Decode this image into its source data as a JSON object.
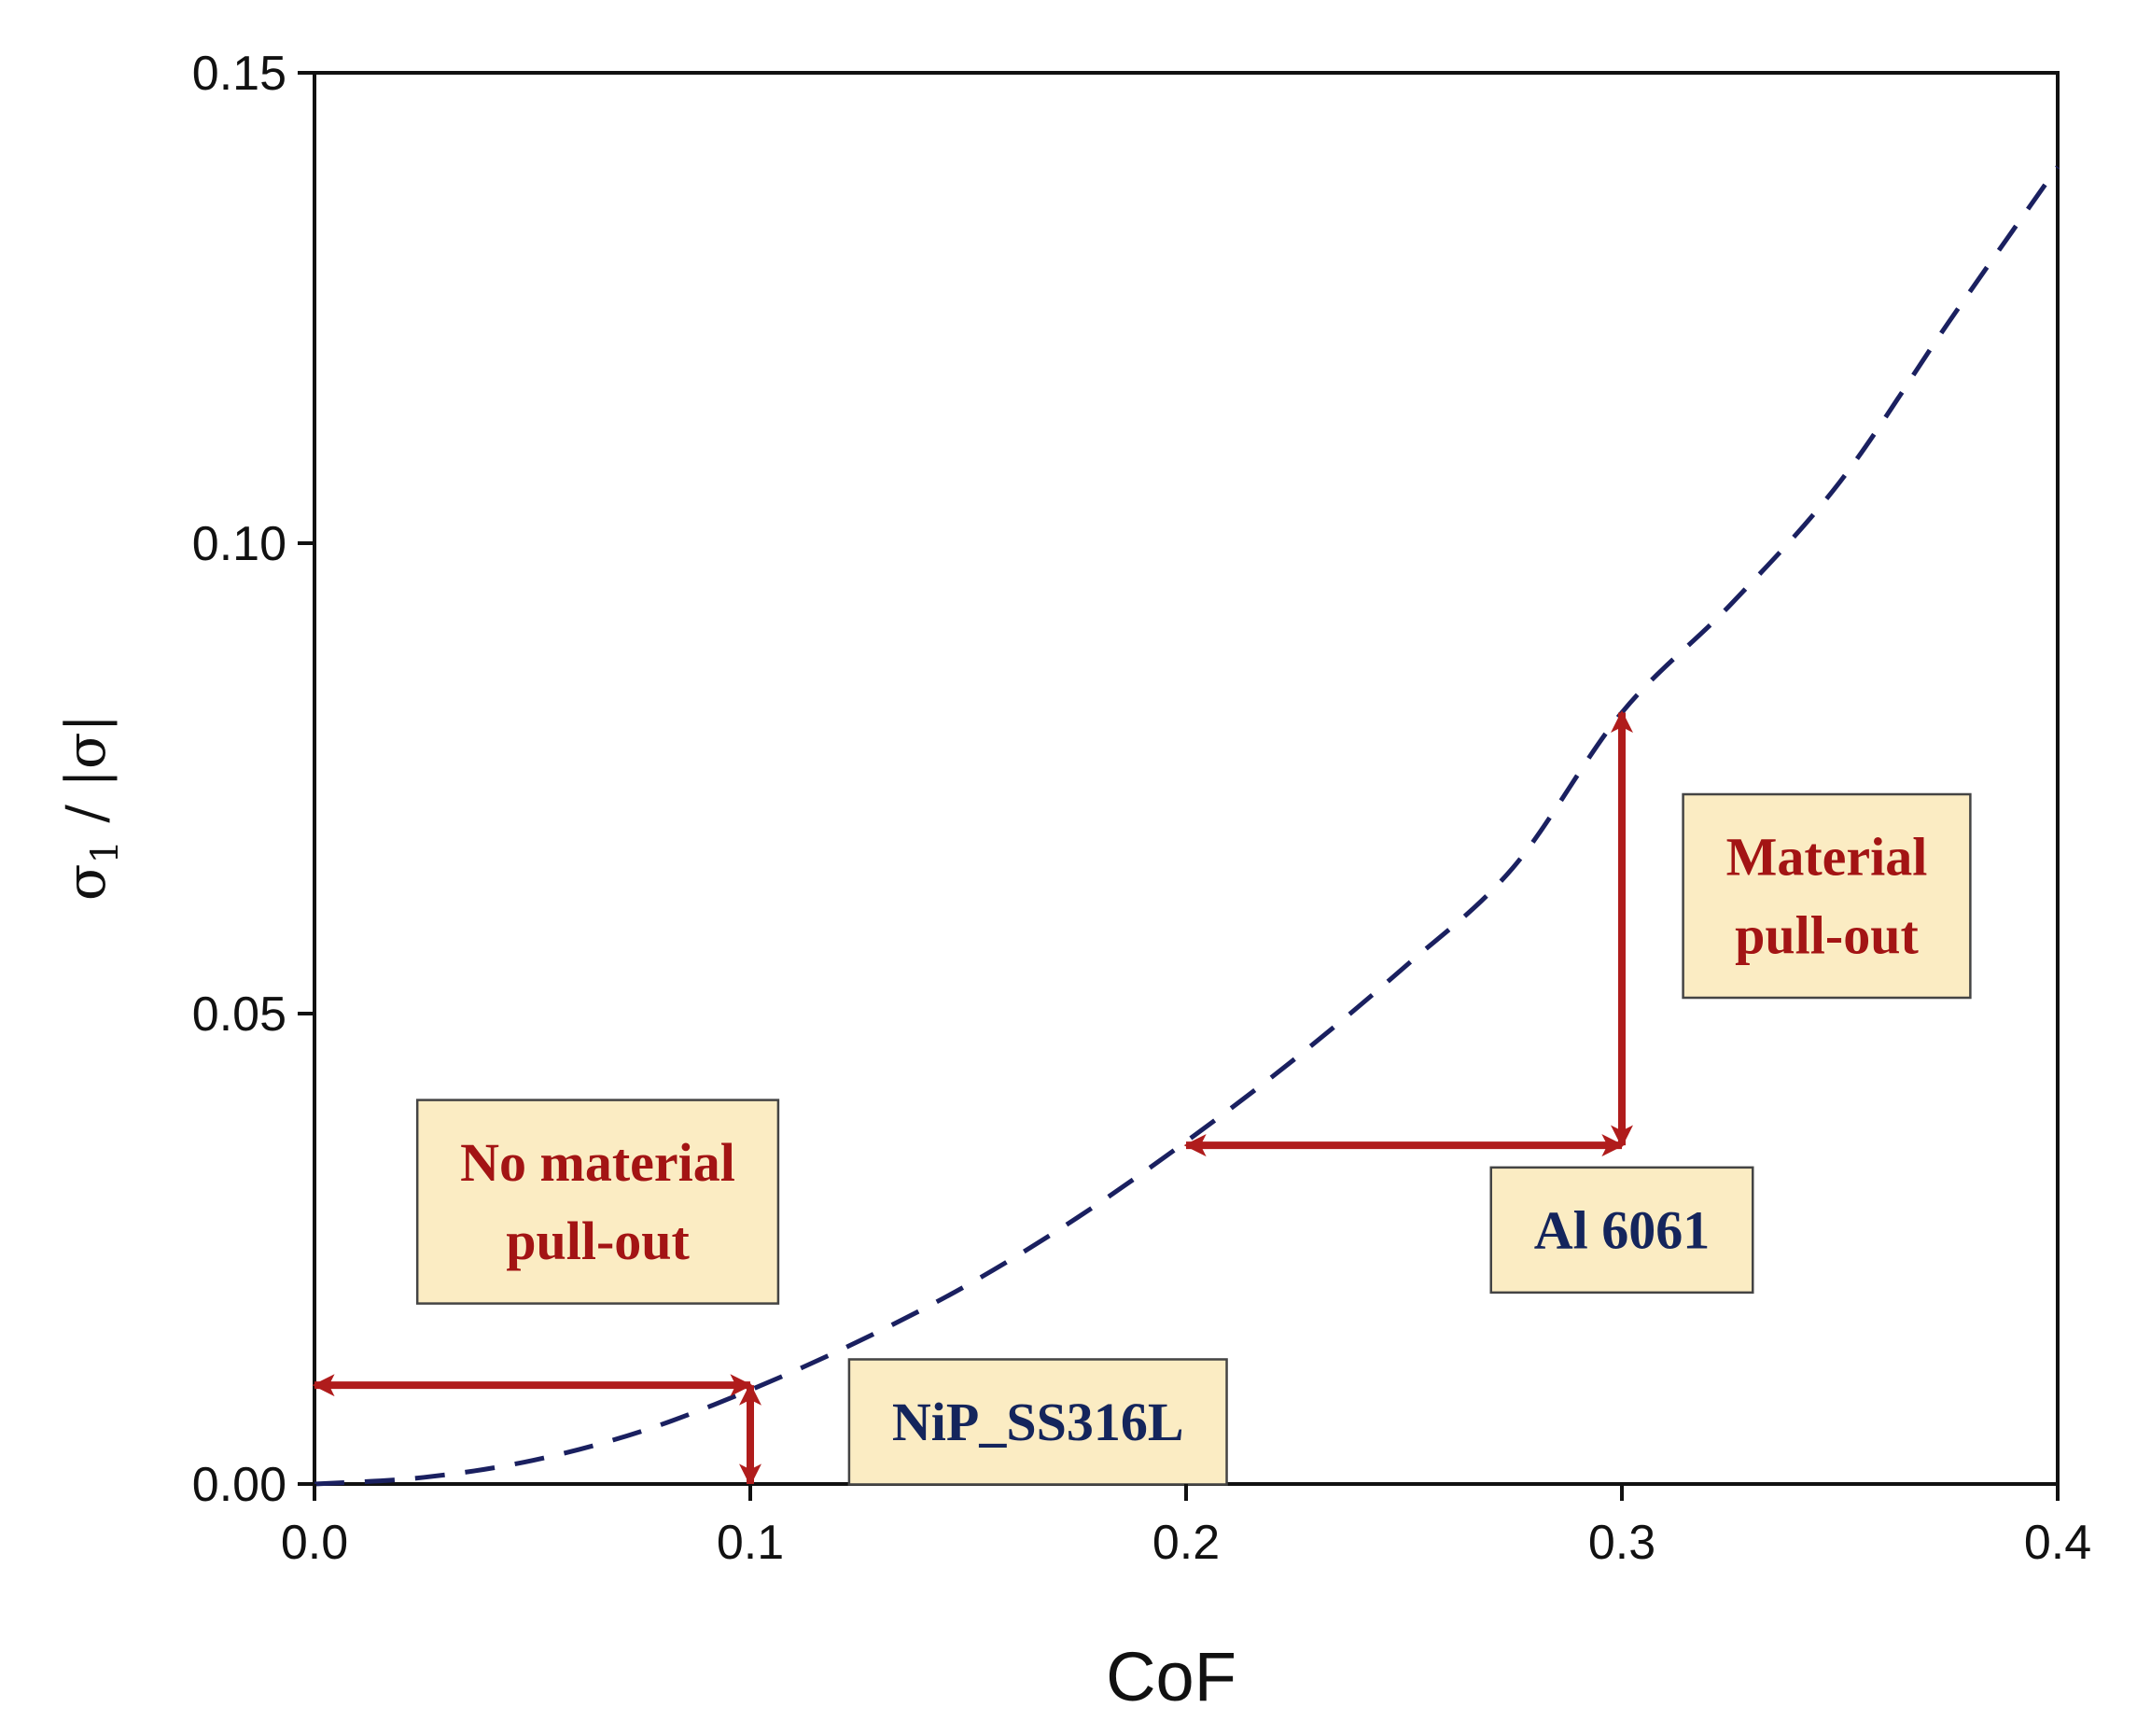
{
  "chart_data": {
    "type": "line",
    "title": "",
    "xlabel": "CoF",
    "ylabel": {
      "base": "σ",
      "sub": "1",
      "rest": " / |σ|"
    },
    "xlim": [
      0.0,
      0.4
    ],
    "ylim": [
      0.0,
      0.15
    ],
    "xticks": [
      0.0,
      0.1,
      0.2,
      0.3,
      0.4
    ],
    "yticks": [
      0.0,
      0.05,
      0.1,
      0.15
    ],
    "xtick_labels": [
      "0.0",
      "0.1",
      "0.2",
      "0.3",
      "0.4"
    ],
    "ytick_labels": [
      "0.00",
      "0.05",
      "0.10",
      "0.15"
    ],
    "grid": false,
    "series": [
      {
        "name": "σ1/|σ| vs CoF",
        "style": "dashed",
        "color": "#1a2060",
        "x": [
          0.0,
          0.025,
          0.05,
          0.075,
          0.1,
          0.125,
          0.15,
          0.175,
          0.2,
          0.225,
          0.25,
          0.275,
          0.3,
          0.325,
          0.35,
          0.375,
          0.4
        ],
        "y": [
          0.0,
          0.0007,
          0.0025,
          0.0056,
          0.01,
          0.0152,
          0.0212,
          0.0283,
          0.0364,
          0.0452,
          0.0549,
          0.0655,
          0.082,
          0.0935,
          0.1065,
          0.1235,
          0.14
        ]
      }
    ],
    "arrows": [
      {
        "name": "nip-horizontal-arrow",
        "from": [
          0.0,
          0.0105
        ],
        "to": [
          0.1,
          0.0105
        ]
      },
      {
        "name": "nip-vertical-arrow",
        "from": [
          0.1,
          0.0
        ],
        "to": [
          0.1,
          0.0105
        ]
      },
      {
        "name": "al-horizontal-arrow",
        "from": [
          0.2,
          0.036
        ],
        "to": [
          0.3,
          0.036
        ]
      },
      {
        "name": "al-vertical-arrow",
        "from": [
          0.3,
          0.036
        ],
        "to": [
          0.3,
          0.082
        ]
      }
    ],
    "annotations": [
      {
        "name": "no-pullout-label",
        "lines": [
          "No material",
          "pull-out"
        ],
        "color": "#a31414",
        "x": 0.065,
        "y": 0.03
      },
      {
        "name": "nip-label",
        "lines": [
          "NiP_SS316L"
        ],
        "color": "#14255c",
        "x": 0.166,
        "y": 0.0066
      },
      {
        "name": "al-label",
        "lines": [
          "Al 6061"
        ],
        "color": "#14255c",
        "x": 0.3,
        "y": 0.027
      },
      {
        "name": "pullout-label",
        "lines": [
          "Material",
          "pull-out"
        ],
        "color": "#a31414",
        "x": 0.347,
        "y": 0.0625
      }
    ],
    "colors": {
      "curve": "#1a2060",
      "arrow": "#b01c1c",
      "box_fill": "#fbecc3",
      "box_stroke": "#444444"
    }
  }
}
